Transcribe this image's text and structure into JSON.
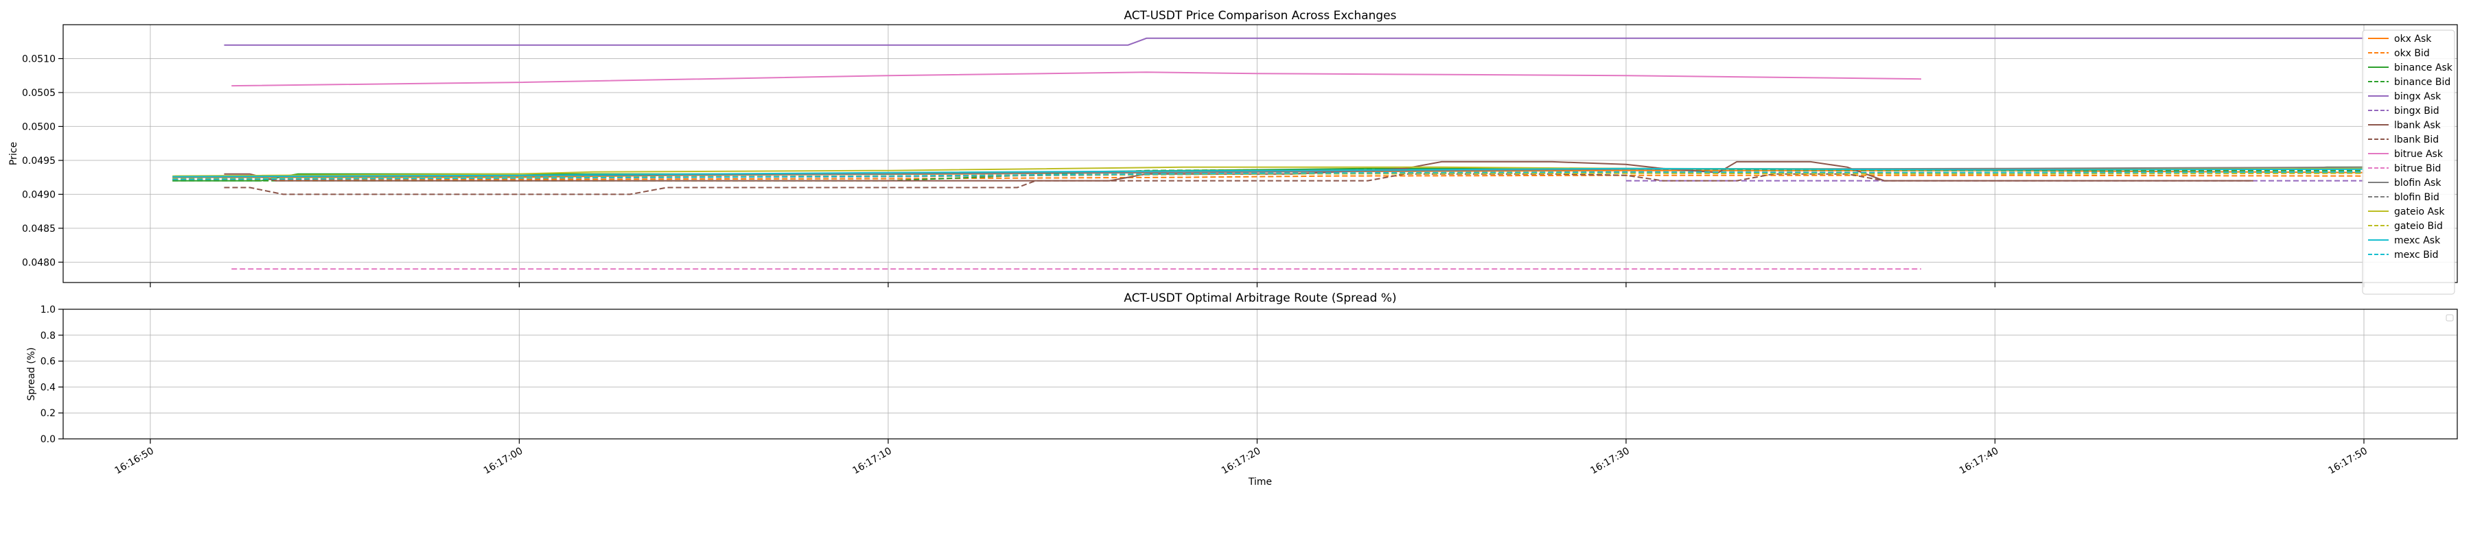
{
  "chart_data": [
    {
      "type": "line",
      "title": "ACT-USDT Price Comparison Across Exchanges",
      "xlabel": "",
      "ylabel": "Price",
      "ylim": [
        0.0477,
        0.0515
      ],
      "yticks": [
        "0.0480",
        "0.0485",
        "0.0490",
        "0.0495",
        "0.0500",
        "0.0505",
        "0.0510"
      ],
      "ytick_values": [
        0.048,
        0.0485,
        0.049,
        0.0495,
        0.05,
        0.0505,
        0.051
      ],
      "grid": true,
      "legend_position": "right",
      "series": [
        {
          "name": "okx Ask",
          "color": "#ff7f0e",
          "dash": false,
          "points": [
            [
              0.6,
              0.04925
            ],
            [
              10,
              0.04925
            ],
            [
              14,
              0.04928
            ],
            [
              22,
              0.0493
            ],
            [
              30,
              0.04933
            ],
            [
              40,
              0.04935
            ],
            [
              50,
              0.04935
            ],
            [
              60,
              0.04932
            ]
          ]
        },
        {
          "name": "okx Bid",
          "color": "#ff7f0e",
          "dash": true,
          "points": [
            [
              0.6,
              0.04922
            ],
            [
              10,
              0.04922
            ],
            [
              20,
              0.04923
            ],
            [
              28,
              0.04925
            ],
            [
              32,
              0.04927
            ],
            [
              40,
              0.04928
            ],
            [
              50,
              0.04928
            ],
            [
              60,
              0.04927
            ]
          ]
        },
        {
          "name": "binance Ask",
          "color": "#2ca02c",
          "dash": false,
          "points": [
            [
              0.6,
              0.0492
            ],
            [
              3,
              0.0492
            ],
            [
              4,
              0.0493
            ],
            [
              10,
              0.0493
            ],
            [
              20,
              0.0493
            ],
            [
              28,
              0.04935
            ],
            [
              33,
              0.04938
            ],
            [
              40,
              0.04938
            ],
            [
              50,
              0.04937
            ],
            [
              58,
              0.04937
            ],
            [
              59,
              0.0494
            ],
            [
              60,
              0.0494
            ]
          ]
        },
        {
          "name": "binance Bid",
          "color": "#2ca02c",
          "dash": true,
          "points": [
            [
              0.6,
              0.0492
            ],
            [
              10,
              0.0492
            ],
            [
              20,
              0.0492
            ],
            [
              27,
              0.04935
            ],
            [
              33,
              0.04937
            ],
            [
              40,
              0.04937
            ],
            [
              50,
              0.04935
            ],
            [
              60,
              0.04935
            ]
          ]
        },
        {
          "name": "bingx Ask",
          "color": "#9467bd",
          "dash": false,
          "points": [
            [
              2,
              0.0512
            ],
            [
              10,
              0.0512
            ],
            [
              20,
              0.0512
            ],
            [
              26.5,
              0.0512
            ],
            [
              27,
              0.0513
            ],
            [
              40,
              0.0513
            ],
            [
              50,
              0.0513
            ],
            [
              60,
              0.0513
            ]
          ]
        },
        {
          "name": "bingx Bid",
          "color": "#9467bd",
          "dash": true,
          "points": [
            [
              40,
              0.0492
            ],
            [
              50,
              0.0492
            ],
            [
              60,
              0.0492
            ]
          ]
        },
        {
          "name": "lbank Ask",
          "color": "#8c564b",
          "dash": false,
          "points": [
            [
              2,
              0.0493
            ],
            [
              2.7,
              0.0493
            ],
            [
              3.4,
              0.0492
            ],
            [
              10,
              0.0492
            ],
            [
              20,
              0.0492
            ],
            [
              26,
              0.0492
            ],
            [
              27,
              0.0493
            ],
            [
              31,
              0.0493
            ],
            [
              34,
              0.04938
            ],
            [
              35,
              0.04948
            ],
            [
              38,
              0.04948
            ],
            [
              40,
              0.04944
            ],
            [
              41,
              0.04938
            ],
            [
              42.5,
              0.04932
            ],
            [
              43,
              0.04948
            ],
            [
              45,
              0.04948
            ],
            [
              46,
              0.0494
            ],
            [
              47,
              0.0492
            ],
            [
              50,
              0.0492
            ],
            [
              57,
              0.0492
            ]
          ]
        },
        {
          "name": "lbank Bid",
          "color": "#8c564b",
          "dash": true,
          "points": [
            [
              2,
              0.0491
            ],
            [
              2.7,
              0.0491
            ],
            [
              3.6,
              0.049
            ],
            [
              10,
              0.049
            ],
            [
              13,
              0.049
            ],
            [
              14,
              0.0491
            ],
            [
              20,
              0.0491
            ],
            [
              23.5,
              0.0491
            ],
            [
              24,
              0.0492
            ],
            [
              33,
              0.0492
            ],
            [
              34,
              0.0493
            ],
            [
              38,
              0.0493
            ],
            [
              40,
              0.04928
            ],
            [
              41,
              0.0492
            ],
            [
              43,
              0.0492
            ],
            [
              44,
              0.0493
            ],
            [
              46,
              0.0493
            ],
            [
              47,
              0.0492
            ],
            [
              50,
              0.0492
            ],
            [
              57,
              0.0492
            ]
          ]
        },
        {
          "name": "bitrue Ask",
          "color": "#e377c2",
          "dash": false,
          "points": [
            [
              2.2,
              0.0506
            ],
            [
              10,
              0.05065
            ],
            [
              20,
              0.05075
            ],
            [
              27,
              0.0508
            ],
            [
              30,
              0.05078
            ],
            [
              40,
              0.05075
            ],
            [
              48,
              0.0507
            ]
          ]
        },
        {
          "name": "bitrue Bid",
          "color": "#e377c2",
          "dash": true,
          "points": [
            [
              2.2,
              0.0479
            ],
            [
              10,
              0.0479
            ],
            [
              20,
              0.0479
            ],
            [
              30,
              0.0479
            ],
            [
              40,
              0.0479
            ],
            [
              48,
              0.0479
            ]
          ]
        },
        {
          "name": "blofin Ask",
          "color": "#7f7f7f",
          "dash": false,
          "points": [
            [
              0.6,
              0.04925
            ],
            [
              10,
              0.04927
            ],
            [
              20,
              0.0493
            ],
            [
              30,
              0.04933
            ],
            [
              40,
              0.04937
            ],
            [
              50,
              0.04938
            ],
            [
              60,
              0.0494
            ]
          ]
        },
        {
          "name": "blofin Bid",
          "color": "#7f7f7f",
          "dash": true,
          "points": [
            [
              0.6,
              0.04922
            ],
            [
              10,
              0.04924
            ],
            [
              20,
              0.04926
            ],
            [
              30,
              0.0493
            ],
            [
              40,
              0.04932
            ],
            [
              50,
              0.04932
            ],
            [
              60,
              0.04933
            ]
          ]
        },
        {
          "name": "gateio Ask",
          "color": "#bcbd22",
          "dash": false,
          "points": [
            [
              0.6,
              0.04927
            ],
            [
              10,
              0.0493
            ],
            [
              12,
              0.04933
            ],
            [
              20,
              0.04935
            ],
            [
              28,
              0.0494
            ],
            [
              35,
              0.0494
            ],
            [
              40,
              0.04938
            ],
            [
              50,
              0.04936
            ],
            [
              60,
              0.04938
            ]
          ]
        },
        {
          "name": "gateio Bid",
          "color": "#bcbd22",
          "dash": true,
          "points": [
            [
              0.6,
              0.04923
            ],
            [
              10,
              0.04925
            ],
            [
              20,
              0.04927
            ],
            [
              30,
              0.0493
            ],
            [
              40,
              0.04931
            ],
            [
              50,
              0.0493
            ],
            [
              60,
              0.04931
            ]
          ]
        },
        {
          "name": "mexc Ask",
          "color": "#17becf",
          "dash": false,
          "points": [
            [
              0.6,
              0.04926
            ],
            [
              10,
              0.04928
            ],
            [
              20,
              0.04932
            ],
            [
              30,
              0.04935
            ],
            [
              40,
              0.04938
            ],
            [
              50,
              0.04936
            ],
            [
              60,
              0.04937
            ]
          ]
        },
        {
          "name": "mexc Bid",
          "color": "#17becf",
          "dash": true,
          "points": [
            [
              0.6,
              0.04922
            ],
            [
              10,
              0.04924
            ],
            [
              20,
              0.04927
            ],
            [
              30,
              0.04931
            ],
            [
              40,
              0.04933
            ],
            [
              50,
              0.04932
            ],
            [
              60,
              0.04933
            ]
          ]
        }
      ]
    },
    {
      "type": "line",
      "title": "ACT-USDT Optimal Arbitrage Route (Spread %)",
      "xlabel": "Time",
      "ylabel": "Spread (%)",
      "ylim": [
        0.0,
        1.0
      ],
      "yticks": [
        "0.0",
        "0.2",
        "0.4",
        "0.6",
        "0.8",
        "1.0"
      ],
      "ytick_values": [
        0.0,
        0.2,
        0.4,
        0.6,
        0.8,
        1.0
      ],
      "xticks": [
        "16:16:50",
        "16:17:00",
        "16:17:10",
        "16:17:20",
        "16:17:30",
        "16:17:40",
        "16:17:50"
      ],
      "grid": true,
      "legend_position": "top-right",
      "series": []
    }
  ]
}
